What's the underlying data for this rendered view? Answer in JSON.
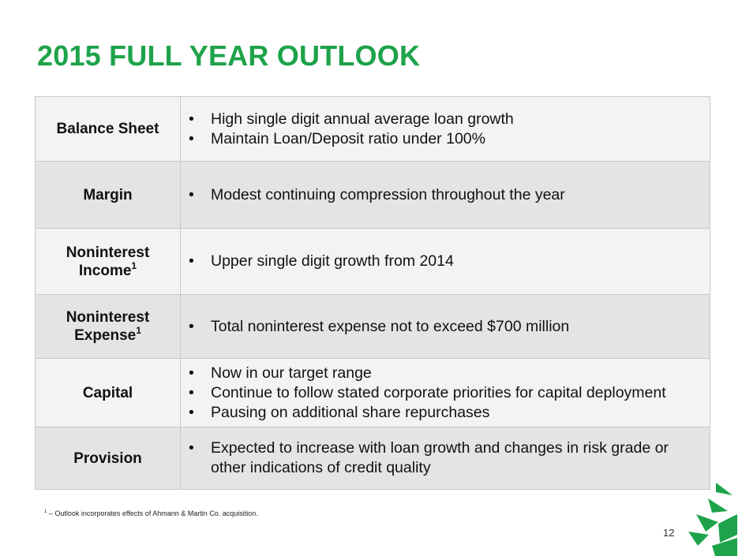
{
  "title": "2015 FULL YEAR OUTLOOK",
  "rows": [
    {
      "label": "Balance Sheet",
      "sup": "",
      "bullets": [
        "High single digit annual average loan growth",
        "Maintain Loan/Deposit ratio under 100%"
      ]
    },
    {
      "label": "Margin",
      "sup": "",
      "bullets": [
        "Modest continuing compression throughout the year"
      ]
    },
    {
      "label": "Noninterest Income",
      "label_line1": "Noninterest",
      "label_line2": "Income",
      "sup": "1",
      "bullets": [
        "Upper single digit growth from 2014"
      ]
    },
    {
      "label": "Noninterest Expense",
      "label_line1": "Noninterest",
      "label_line2": "Expense",
      "sup": "1",
      "bullets": [
        "Total noninterest expense not to exceed $700 million"
      ]
    },
    {
      "label": "Capital",
      "sup": "",
      "bullets": [
        "Now in our target range",
        "Continue to follow stated corporate priorities for capital deployment",
        "Pausing on additional share repurchases"
      ]
    },
    {
      "label": "Provision",
      "sup": "",
      "bullets": [
        "Expected to increase with loan growth and changes in risk grade or other indications of credit quality"
      ]
    }
  ],
  "bullet_glyph": "•",
  "footnote": {
    "marker": "1",
    "text": " – Outlook incorporates effects of Ahmann & Martin Co. acquisition."
  },
  "page_number": "12",
  "colors": {
    "accent": "#1ea34a",
    "row_light": "#f3f3f3",
    "row_dark": "#e4e4e4"
  },
  "logo_icon": "tree-logo-icon"
}
